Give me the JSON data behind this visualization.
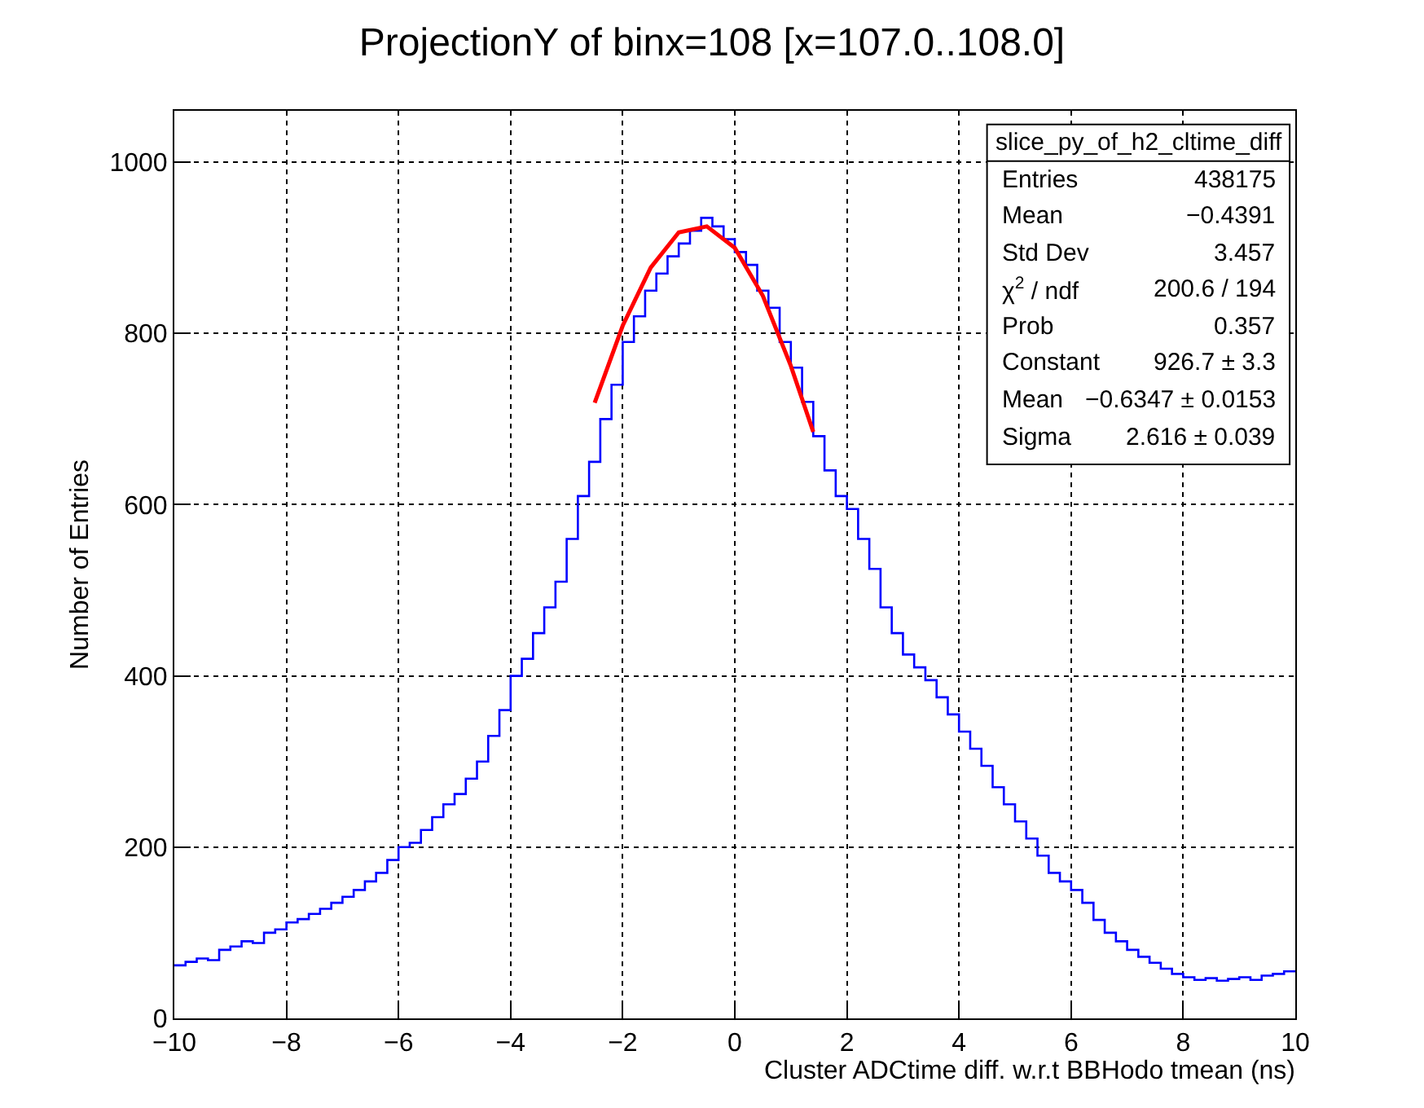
{
  "chart_data": {
    "type": "step",
    "title": "ProjectionY of binx=108 [x=107.0..108.0]",
    "xlabel": "Cluster ADCtime diff. w.r.t BBHodo tmean (ns)",
    "ylabel": "Number of Entries",
    "series": [
      {
        "color": "#0000ff",
        "x": [
          -10,
          -9.8,
          -9.6,
          -9.4,
          -9.2,
          -9,
          -8.8,
          -8.6,
          -8.4,
          -8.2,
          -8,
          -7.8,
          -7.6,
          -7.4,
          -7.2,
          -7,
          -6.8,
          -6.6,
          -6.4,
          -6.2,
          -6,
          -5.8,
          -5.6,
          -5.4,
          -5.2,
          -5,
          -4.8,
          -4.6,
          -4.4,
          -4.2,
          -4,
          -3.8,
          -3.6,
          -3.4,
          -3.2,
          -3,
          -2.8,
          -2.6,
          -2.4,
          -2.2,
          -2,
          -1.8,
          -1.6,
          -1.4,
          -1.2,
          -1,
          -0.8,
          -0.6,
          -0.4,
          -0.2,
          0,
          0.2,
          0.4,
          0.6,
          0.8,
          1,
          1.2,
          1.4,
          1.6,
          1.8,
          2,
          2.2,
          2.4,
          2.6,
          2.8,
          3,
          3.2,
          3.4,
          3.6,
          3.8,
          4,
          4.2,
          4.4,
          4.6,
          4.8,
          5,
          5.2,
          5.4,
          5.6,
          5.8,
          6,
          6.2,
          6.4,
          6.6,
          6.8,
          7,
          7.2,
          7.4,
          7.6,
          7.8,
          8,
          8.2,
          8.4,
          8.6,
          8.8,
          9,
          9.2,
          9.4,
          9.6,
          9.8,
          10
        ],
        "values": [
          62,
          66,
          70,
          68,
          80,
          84,
          90,
          88,
          100,
          104,
          112,
          116,
          122,
          128,
          135,
          142,
          150,
          160,
          170,
          185,
          200,
          205,
          220,
          235,
          250,
          262,
          280,
          300,
          330,
          360,
          400,
          420,
          450,
          480,
          510,
          560,
          610,
          650,
          700,
          740,
          790,
          820,
          850,
          870,
          890,
          905,
          920,
          935,
          925,
          910,
          895,
          880,
          850,
          830,
          790,
          760,
          720,
          680,
          640,
          610,
          595,
          560,
          525,
          480,
          450,
          425,
          410,
          395,
          375,
          355,
          335,
          315,
          295,
          270,
          250,
          230,
          210,
          190,
          170,
          160,
          150,
          135,
          115,
          100,
          90,
          80,
          72,
          65,
          58,
          52,
          48,
          45,
          47,
          44,
          46,
          48,
          45,
          50,
          52,
          55,
          55
        ]
      },
      {
        "type": "line",
        "color": "#ff0000",
        "x": [
          -2.5,
          -2,
          -1.5,
          -1,
          -0.5,
          0,
          0.5,
          1,
          1.4
        ],
        "values": [
          719,
          809,
          877,
          918,
          925,
          900,
          844,
          762,
          685
        ]
      }
    ],
    "xlim": [
      -10,
      10
    ],
    "xticks": [
      -10,
      -8,
      -6,
      -4,
      -2,
      0,
      2,
      4,
      6,
      8,
      10
    ],
    "ylim": [
      0,
      1060
    ],
    "yticks": [
      0,
      200,
      400,
      600,
      800,
      1000
    ],
    "grid": true,
    "line_style": "solid",
    "annotations": [
      "slice_py_of_h2_cltime_diff",
      "Entries",
      "438175",
      "Mean",
      "−0.4391",
      "Std Dev",
      "3.457",
      "χ$^{2}$ / ndf",
      "200.6 / 194",
      "Prob",
      "0.357",
      "Constant",
      "926.7 ± 3.3",
      "Mean",
      "−0.6347 ± 0.0153",
      "Sigma",
      "2.616 ± 0.039"
    ]
  }
}
